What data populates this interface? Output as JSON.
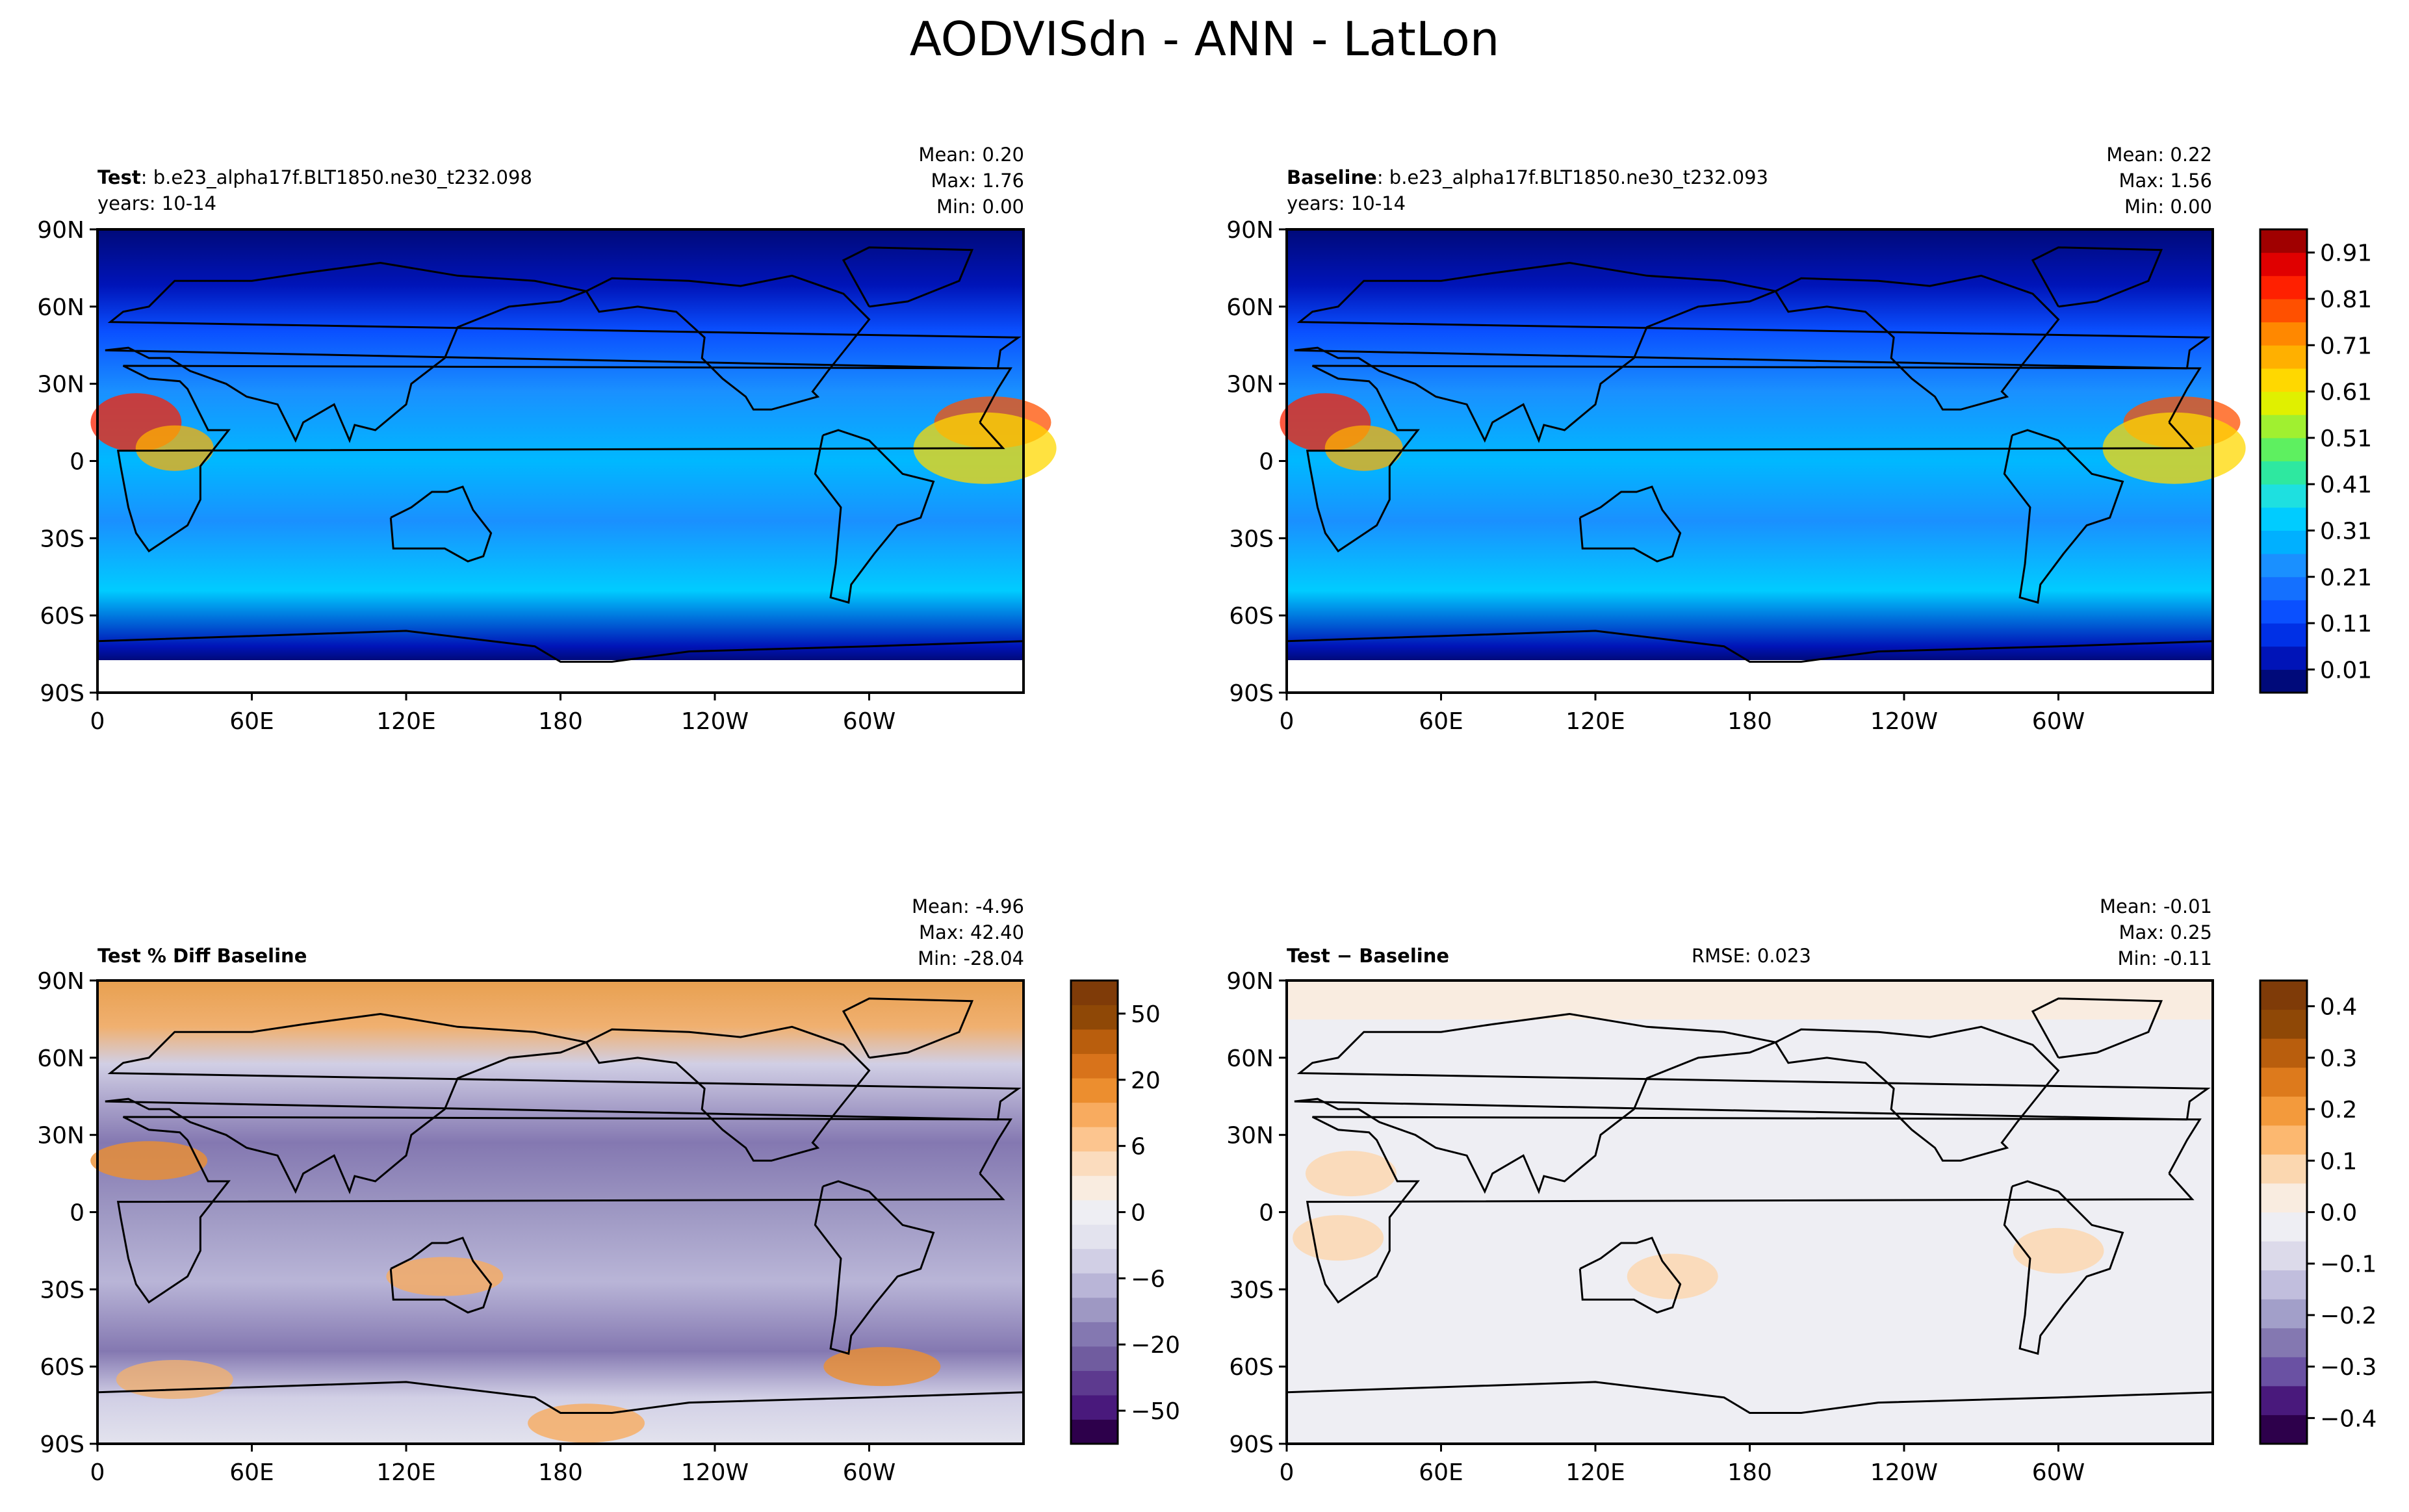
{
  "figure_title": "AODVISdn - ANN - LatLon",
  "axes": {
    "lat_ticks": [
      "90N",
      "60N",
      "30N",
      "0",
      "30S",
      "60S",
      "90S"
    ],
    "lon_ticks": [
      "0",
      "60E",
      "120E",
      "180",
      "120W",
      "60W"
    ]
  },
  "panels": {
    "test": {
      "label_bold": "Test",
      "label_rest": ": b.e23_alpha17f.BLT1850.ne30_t232.098",
      "years": "years: 10-14",
      "stats": {
        "mean": "Mean:  0.20",
        "max": "Max:  1.76",
        "min": "Min:  0.00"
      }
    },
    "baseline": {
      "label_bold": "Baseline",
      "label_rest": ": b.e23_alpha17f.BLT1850.ne30_t232.093",
      "years": "years: 10-14",
      "stats": {
        "mean": "Mean:  0.22",
        "max": "Max:  1.56",
        "min": "Min:  0.00"
      }
    },
    "pctdiff": {
      "label": "Test % Diff Baseline",
      "stats": {
        "mean": "Mean: -4.96",
        "max": "Max: 42.40",
        "min": "Min: -28.04"
      }
    },
    "diff": {
      "label": "Test − Baseline",
      "rmse": "RMSE: 0.023",
      "stats": {
        "mean": "Mean: -0.01",
        "max": "Max:  0.25",
        "min": "Min: -0.11"
      }
    }
  },
  "colorbars": {
    "aod": {
      "ticks": [
        "0.91",
        "0.81",
        "0.71",
        "0.61",
        "0.51",
        "0.41",
        "0.31",
        "0.21",
        "0.11",
        "0.01"
      ],
      "colors": [
        "#000a7a",
        "#0014b8",
        "#0030e6",
        "#0a50ff",
        "#1470ff",
        "#1a90ff",
        "#00b0ff",
        "#00ccff",
        "#1ee0e0",
        "#2ee8a0",
        "#5ef060",
        "#a0f030",
        "#e0f000",
        "#ffd800",
        "#ffb000",
        "#ff8800",
        "#ff5000",
        "#ff2000",
        "#e00000",
        "#a00000"
      ]
    },
    "pctdiff": {
      "ticks": [
        "50",
        "20",
        "6",
        "0",
        "−6",
        "−20",
        "−50"
      ],
      "colors": [
        "#2d004b",
        "#49197c",
        "#5d3a8f",
        "#705c9f",
        "#8478b1",
        "#9e98c3",
        "#b9b5d7",
        "#d1cfe5",
        "#e3e3ee",
        "#eeeef3",
        "#f9ece0",
        "#fbdcbe",
        "#fcc58f",
        "#f8ab5f",
        "#ec8e2f",
        "#d8731b",
        "#b95e0d",
        "#8f4806",
        "#7f3b08"
      ]
    },
    "diff": {
      "ticks": [
        "0.4",
        "0.3",
        "0.2",
        "0.1",
        "0.0",
        "−0.1",
        "−0.2",
        "−0.3",
        "−0.4"
      ],
      "colors": [
        "#2d004b",
        "#49197c",
        "#6a51a3",
        "#8478b1",
        "#a29fc9",
        "#c1bedd",
        "#dcdaea",
        "#eeeef3",
        "#f9ece0",
        "#fbd7b0",
        "#fcb870",
        "#f39a3c",
        "#dd7a1c",
        "#b95e0d",
        "#8f4806",
        "#7f3b08"
      ]
    }
  },
  "chart_data": [
    {
      "type": "heatmap",
      "title": "Test",
      "xlabel": "",
      "ylabel": "",
      "xlim": [
        0,
        360
      ],
      "ylim": [
        -90,
        90
      ],
      "x_ticks": [
        "0",
        "60E",
        "120E",
        "180",
        "120W",
        "60W"
      ],
      "y_ticks": [
        "90N",
        "60N",
        "30N",
        "0",
        "30S",
        "60S",
        "90S"
      ],
      "color_range": [
        0.01,
        0.91
      ],
      "mean": 0.2,
      "max": 1.76,
      "min": 0.0
    },
    {
      "type": "heatmap",
      "title": "Baseline",
      "xlabel": "",
      "ylabel": "",
      "xlim": [
        0,
        360
      ],
      "ylim": [
        -90,
        90
      ],
      "x_ticks": [
        "0",
        "60E",
        "120E",
        "180",
        "120W",
        "60W"
      ],
      "y_ticks": [
        "90N",
        "60N",
        "30N",
        "0",
        "30S",
        "60S",
        "90S"
      ],
      "color_range": [
        0.01,
        0.91
      ],
      "mean": 0.22,
      "max": 1.56,
      "min": 0.0
    },
    {
      "type": "heatmap",
      "title": "Test % Diff Baseline",
      "xlabel": "",
      "ylabel": "",
      "xlim": [
        0,
        360
      ],
      "ylim": [
        -90,
        90
      ],
      "x_ticks": [
        "0",
        "60E",
        "120E",
        "180",
        "120W",
        "60W"
      ],
      "y_ticks": [
        "90N",
        "60N",
        "30N",
        "0",
        "30S",
        "60S",
        "90S"
      ],
      "mean": -4.96,
      "max": 42.4,
      "min": -28.04
    },
    {
      "type": "heatmap",
      "title": "Test − Baseline",
      "xlabel": "",
      "ylabel": "",
      "xlim": [
        0,
        360
      ],
      "ylim": [
        -90,
        90
      ],
      "x_ticks": [
        "0",
        "60E",
        "120E",
        "180",
        "120W",
        "60W"
      ],
      "y_ticks": [
        "90N",
        "60N",
        "30N",
        "0",
        "30S",
        "60S",
        "90S"
      ],
      "mean": -0.01,
      "max": 0.25,
      "min": -0.11,
      "rmse": 0.023
    }
  ]
}
